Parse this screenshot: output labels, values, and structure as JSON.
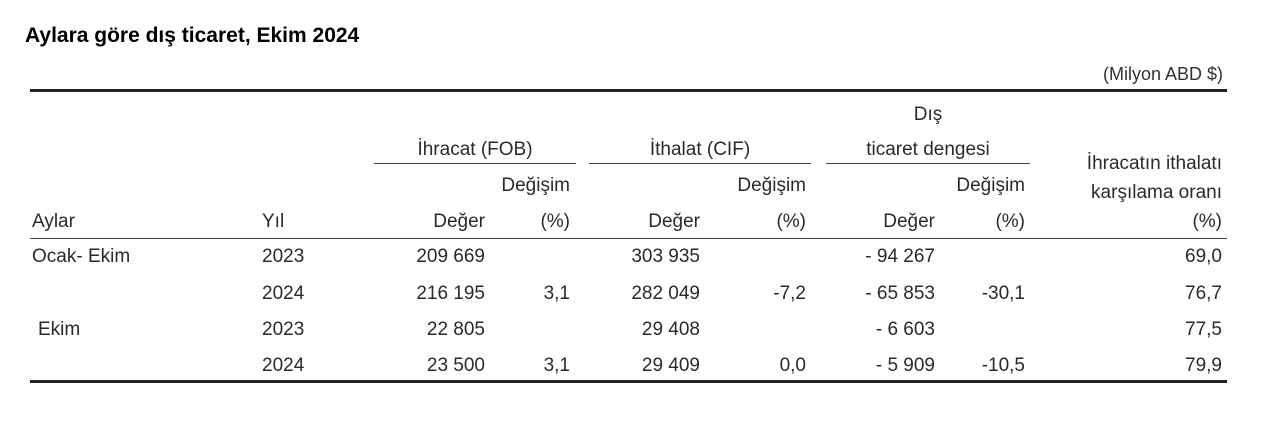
{
  "title": "Aylara göre dış ticaret, Ekim 2024",
  "unit": "(Milyon ABD $)",
  "headers": {
    "export_group": "İhracat (FOB)",
    "import_group": "İthalat (CIF)",
    "balance_group_line1": "Dış",
    "balance_group_line2": "ticaret dengesi",
    "coverage_line1": "İhracatın ithalatı",
    "coverage_line2": "karşılama oranı",
    "coverage_pct": "(%)",
    "change": "Değişim",
    "months": "Aylar",
    "year": "Yıl",
    "value": "Değer",
    "pct": "(%)"
  },
  "rows": [
    {
      "label": "Ocak- Ekim",
      "year": "2023",
      "exp_value": "209 669",
      "exp_change": "",
      "imp_value": "303 935",
      "imp_change": "",
      "bal_value": "- 94 267",
      "bal_change": "",
      "coverage": "69,0"
    },
    {
      "label": "",
      "year": "2024",
      "exp_value": "216 195",
      "exp_change": "3,1",
      "imp_value": "282 049",
      "imp_change": "-7,2",
      "bal_value": "- 65 853",
      "bal_change": "-30,1",
      "coverage": "76,7"
    },
    {
      "label": "Ekim",
      "year": "2023",
      "exp_value": "22 805",
      "exp_change": "",
      "imp_value": "29 408",
      "imp_change": "",
      "bal_value": "- 6 603",
      "bal_change": "",
      "coverage": "77,5"
    },
    {
      "label": "",
      "year": "2024",
      "exp_value": "23 500",
      "exp_change": "3,1",
      "imp_value": "29 409",
      "imp_change": "0,0",
      "bal_value": "- 5 909",
      "bal_change": "-10,5",
      "coverage": "79,9"
    }
  ]
}
